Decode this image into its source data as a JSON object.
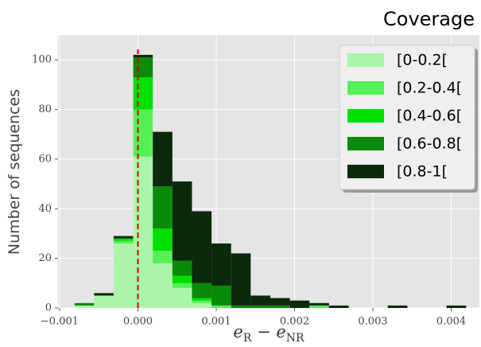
{
  "chart_data": {
    "type": "histogram",
    "stacked": true,
    "legend_title": "Coverage",
    "xlabel": [
      "e",
      "R",
      " − e",
      "NR"
    ],
    "ylabel": "Number of sequences",
    "bins": [
      -0.00081,
      -0.00056,
      -0.00031,
      -6e-05,
      0.00019,
      0.00044,
      0.00069,
      0.00094,
      0.00119,
      0.00144,
      0.00169,
      0.00194,
      0.00219,
      0.00244,
      0.00269,
      0.00294,
      0.00319,
      0.00344,
      0.00369,
      0.00394,
      0.00419
    ],
    "series": [
      {
        "name": "[0-0.2[",
        "color": "#aaf5aa",
        "values": [
          1,
          5,
          26,
          61,
          18,
          8,
          2,
          0,
          0,
          0,
          0,
          0,
          0,
          0,
          0,
          0,
          0,
          0,
          0,
          0
        ]
      },
      {
        "name": "[0.2-0.4[",
        "color": "#55f055",
        "values": [
          0,
          0,
          1,
          19,
          5,
          2,
          1,
          1,
          0,
          0,
          0,
          0,
          1,
          0,
          0,
          0,
          0,
          0,
          0,
          0
        ]
      },
      {
        "name": "[0.4-0.6[",
        "color": "#00e000",
        "values": [
          0,
          0,
          1,
          13,
          9,
          3,
          1,
          0,
          0,
          0,
          0,
          0,
          0,
          0,
          0,
          0,
          0,
          0,
          0,
          0
        ]
      },
      {
        "name": "[0.6-0.8[",
        "color": "#0a8a0a",
        "values": [
          1,
          0,
          0,
          8,
          17,
          6,
          6,
          8,
          1,
          1,
          1,
          0,
          0,
          0,
          0,
          0,
          0,
          0,
          0,
          0
        ]
      },
      {
        "name": "[0.8-1[",
        "color": "#0b2a0b",
        "values": [
          0,
          1,
          1,
          1,
          22,
          32,
          29,
          17,
          21,
          4,
          3,
          3,
          1,
          1,
          0,
          0,
          1,
          0,
          0,
          1
        ]
      }
    ],
    "vline": {
      "value": 0,
      "color": "#e00000",
      "style": "dashed"
    },
    "xlim": [
      -0.00102,
      0.00436
    ],
    "ylim": [
      0,
      110
    ],
    "xticks": [
      {
        "value": -0.001,
        "label": "−0.001"
      },
      {
        "value": 0,
        "label": "0.000"
      },
      {
        "value": 0.001,
        "label": "0.001"
      },
      {
        "value": 0.002,
        "label": "0.002"
      },
      {
        "value": 0.003,
        "label": "0.003"
      },
      {
        "value": 0.004,
        "label": "0.004"
      }
    ],
    "yticks": [
      0,
      20,
      40,
      60,
      80,
      100
    ],
    "grid": true,
    "legend": "upper right"
  }
}
